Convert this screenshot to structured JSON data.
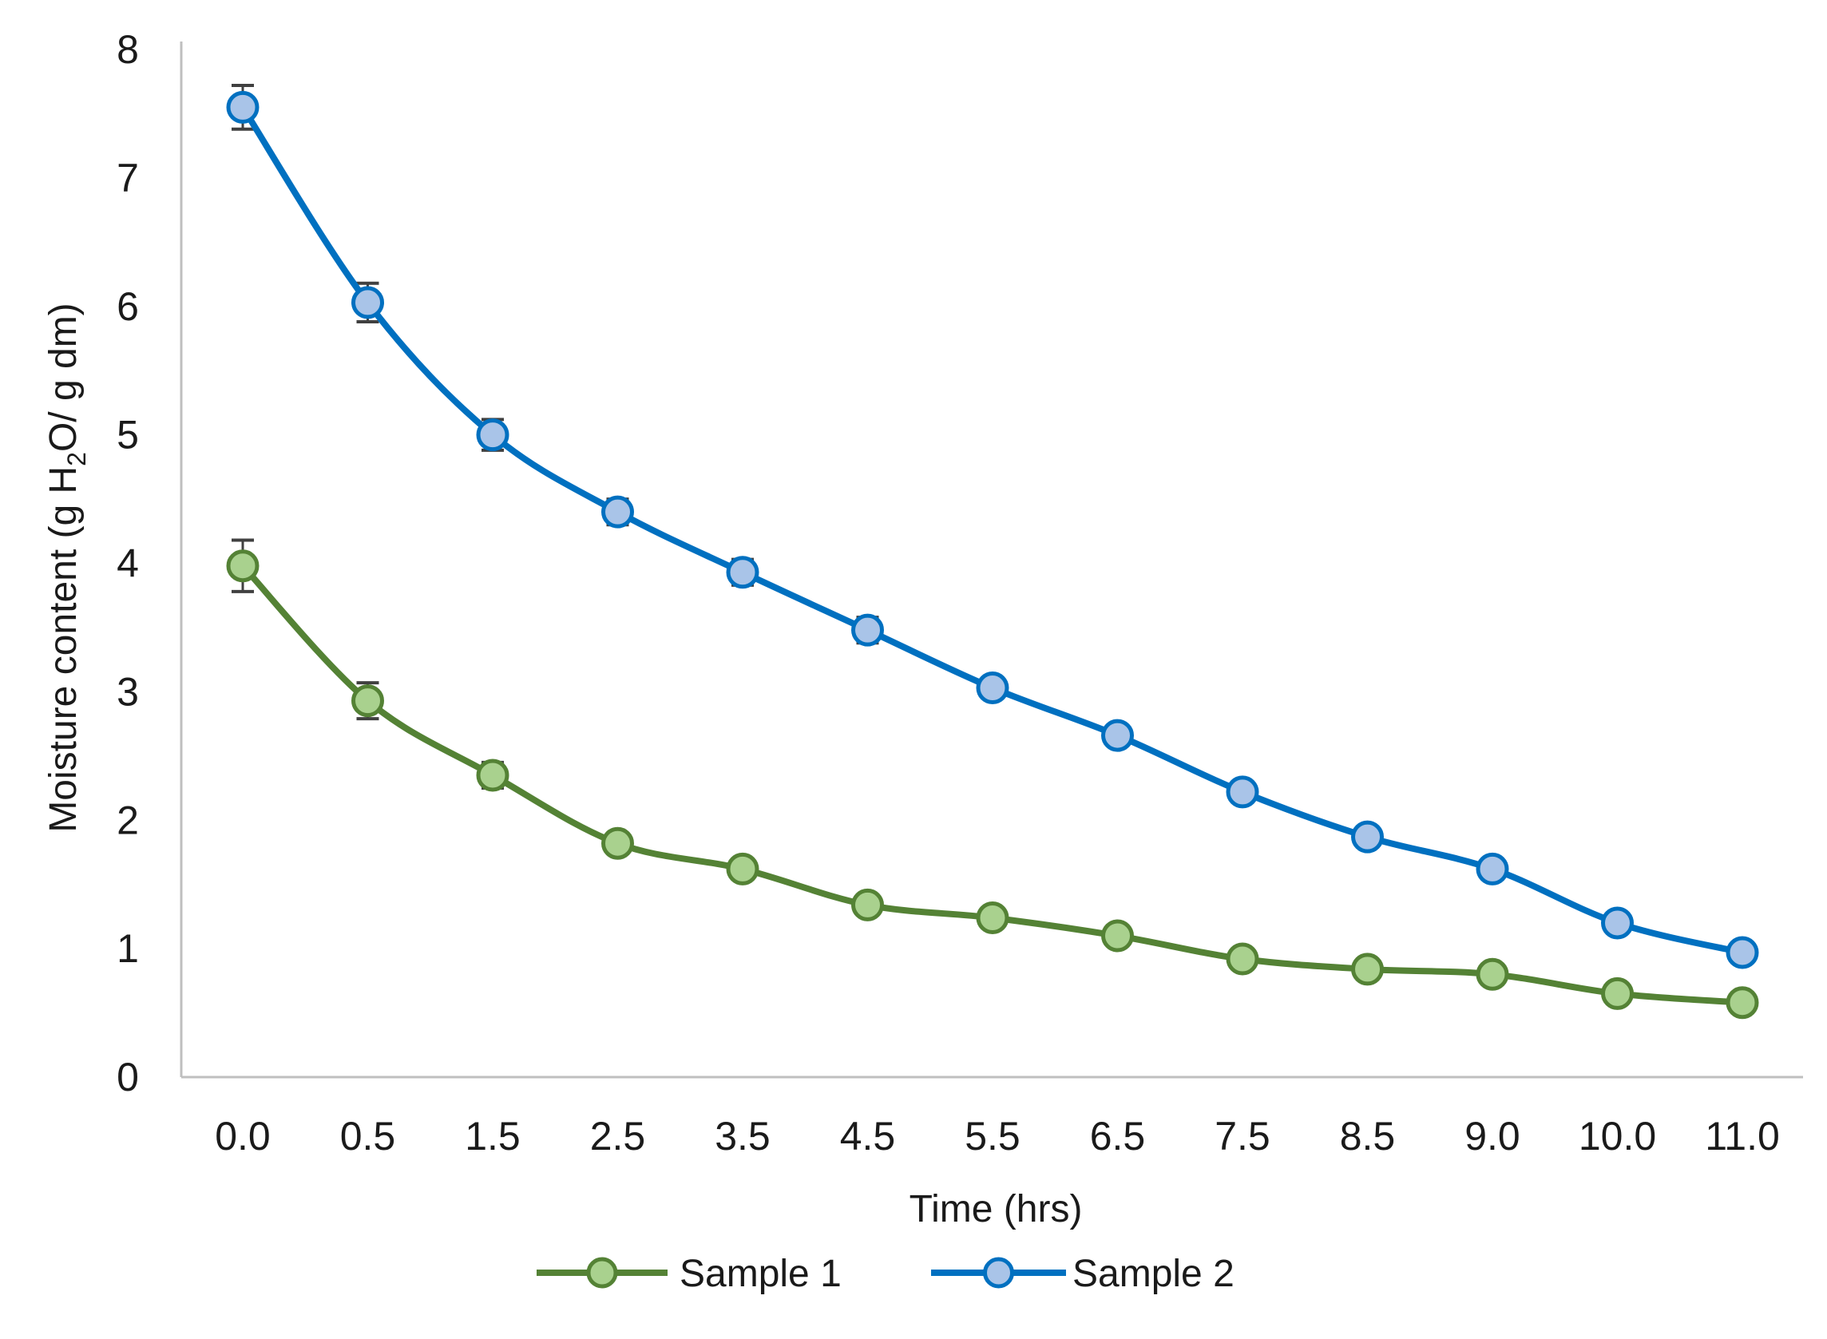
{
  "chart_data": {
    "type": "line",
    "title": "",
    "xlabel": "Time (hrs)",
    "ylabel": {
      "before": "Moisture content (g H",
      "sub": "2",
      "after": "O/ g dm)"
    },
    "categories": [
      "0.0",
      "0.5",
      "1.5",
      "2.5",
      "3.5",
      "4.5",
      "5.5",
      "6.5",
      "7.5",
      "8.5",
      "9.0",
      "10.0",
      "11.0"
    ],
    "ylim": [
      0,
      8
    ],
    "yticks": [
      "0",
      "1",
      "2",
      "3",
      "4",
      "5",
      "6",
      "7",
      "8"
    ],
    "grid": false,
    "legend_position": "bottom",
    "series": [
      {
        "name": "Sample 1",
        "line_color": "#548235",
        "marker_color": "#a9d18e",
        "values": [
          3.98,
          2.93,
          2.35,
          1.82,
          1.62,
          1.34,
          1.24,
          1.1,
          0.92,
          0.84,
          0.8,
          0.65,
          0.58
        ],
        "errors": [
          0.2,
          0.14,
          0.1,
          0.06,
          0.04,
          0.04,
          0.04,
          0.03,
          0.03,
          0.03,
          0.03,
          0.03,
          0.03
        ]
      },
      {
        "name": "Sample 2",
        "line_color": "#0070c0",
        "marker_color": "#a9c4e8",
        "values": [
          7.55,
          6.03,
          5.0,
          4.4,
          3.93,
          3.48,
          3.03,
          2.66,
          2.22,
          1.87,
          1.62,
          1.2,
          0.97
        ],
        "errors": [
          0.17,
          0.15,
          0.12,
          0.1,
          0.1,
          0.1,
          0.05,
          0.04,
          0.04,
          0.04,
          0.04,
          0.04,
          0.04
        ]
      }
    ]
  }
}
